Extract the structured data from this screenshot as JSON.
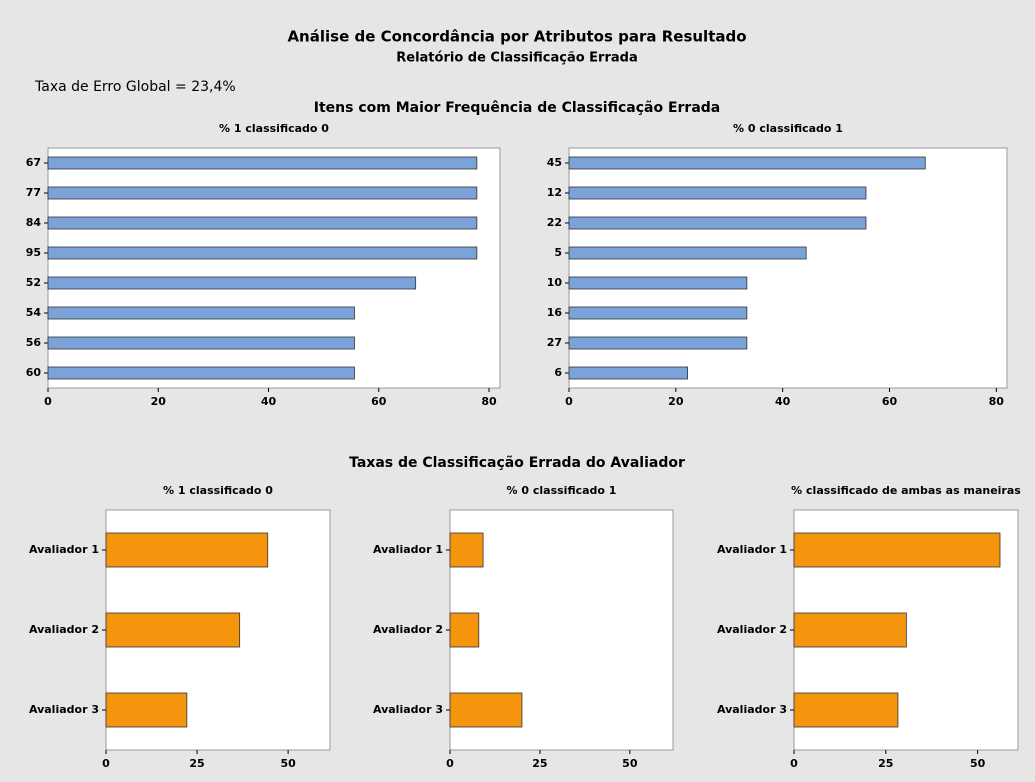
{
  "header": {
    "title": "Análise de Concordância por Atributos para Resultado",
    "subtitle": "Relatório de Classificação Errada",
    "overall_error": "Taxa de Erro Global = 23,4%",
    "section1": "Itens com Maior Frequência de Classificação Errada",
    "section2": "Taxas de Classificação Errada do Avaliador"
  },
  "chart_data": [
    {
      "type": "barh",
      "title": "% 1 classificado 0",
      "categories": [
        "67",
        "77",
        "84",
        "95",
        "52",
        "54",
        "56",
        "60"
      ],
      "values": [
        77.8,
        77.8,
        77.8,
        77.8,
        66.7,
        55.6,
        55.6,
        55.6
      ],
      "color": "#7ba3d9",
      "xlim": [
        0,
        82
      ],
      "xticks": [
        0,
        20,
        40,
        60,
        80
      ]
    },
    {
      "type": "barh",
      "title": "% 0 classificado 1",
      "categories": [
        "45",
        "12",
        "22",
        "5",
        "10",
        "16",
        "27",
        "6"
      ],
      "values": [
        66.7,
        55.6,
        55.6,
        44.4,
        33.3,
        33.3,
        33.3,
        22.2
      ],
      "color": "#7ba3d9",
      "xlim": [
        0,
        82
      ],
      "xticks": [
        0,
        20,
        40,
        60,
        80
      ]
    },
    {
      "type": "barh",
      "title": "% 1 classificado 0",
      "categories": [
        "Avaliador 1",
        "Avaliador 2",
        "Avaliador 3"
      ],
      "values": [
        44.4,
        36.7,
        22.2
      ],
      "color": "#f5950e",
      "xlim": [
        0,
        61.5
      ],
      "xticks": [
        0,
        25,
        50
      ]
    },
    {
      "type": "barh",
      "title": "% 0 classificado 1",
      "categories": [
        "Avaliador 1",
        "Avaliador 2",
        "Avaliador 3"
      ],
      "values": [
        9.2,
        8.0,
        20.0
      ],
      "color": "#f5950e",
      "xlim": [
        0,
        62
      ],
      "xticks": [
        0,
        25,
        50
      ]
    },
    {
      "type": "barh",
      "title": "% classificado de ambas as maneiras",
      "categories": [
        "Avaliador 1",
        "Avaliador 2",
        "Avaliador 3"
      ],
      "values": [
        56.1,
        30.6,
        28.3
      ],
      "color": "#f5950e",
      "xlim": [
        0,
        61
      ],
      "xticks": [
        0,
        25,
        50
      ]
    }
  ]
}
